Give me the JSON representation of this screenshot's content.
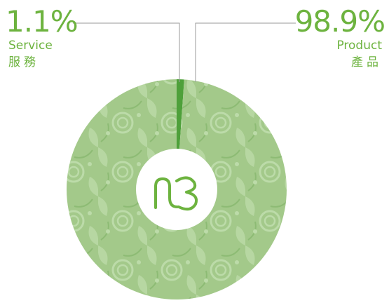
{
  "chart_data": {
    "type": "pie",
    "style": "donut",
    "slices": [
      {
        "label_en": "Service",
        "label_zh": "服務",
        "value": 1.1,
        "value_label": "1.1%",
        "color": "#4ea03a"
      },
      {
        "label_en": "Product",
        "label_zh": "產品",
        "value": 98.9,
        "value_label": "98.9%",
        "color": "#a3c98a"
      }
    ]
  },
  "center_logo": "n3-logo",
  "colors": {
    "text_accent": "#6db33f",
    "leader_line": "#9a9a9a",
    "pattern": "#bcdba9",
    "pattern_dark": "#8dbb74"
  }
}
